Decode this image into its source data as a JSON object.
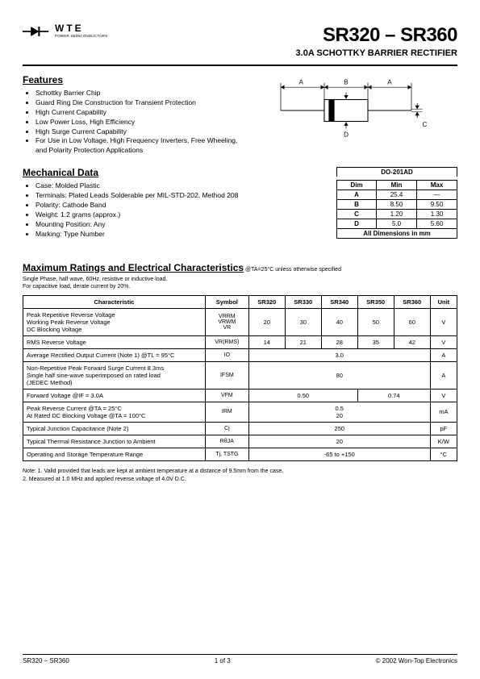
{
  "logo": {
    "brand": "WTE",
    "sub": "POWER SEMICONDUCTORS"
  },
  "title": {
    "main": "SR320 – SR360",
    "sub": "3.0A SCHOTTKY BARRIER RECTIFIER"
  },
  "features": {
    "heading": "Features",
    "items": [
      "Schottky Barrier Chip",
      "Guard Ring Die Construction for Transient Protection",
      "High Current Capability",
      "Low Power Loss, High Efficiency",
      "High Surge Current Capability",
      "For Use in Low Voltage, High Frequency Inverters, Free Wheeling, and Polarity Protection Applications"
    ]
  },
  "mech": {
    "heading": "Mechanical Data",
    "items": [
      "Case: Molded Plastic",
      "Terminals: Plated Leads Solderable per MIL-STD-202, Method 208",
      "Polarity: Cathode Band",
      "Weight: 1.2 grams (approx.)",
      "Mounting Position: Any",
      "Marking: Type Number"
    ]
  },
  "package_labels": {
    "A": "A",
    "B": "B",
    "C": "C",
    "D": "D"
  },
  "dim_table": {
    "title": "DO-201AD",
    "headers": [
      "Dim",
      "Min",
      "Max"
    ],
    "rows": [
      [
        "A",
        "25.4",
        "—"
      ],
      [
        "B",
        "8.50",
        "9.50"
      ],
      [
        "C",
        "1.20",
        "1.30"
      ],
      [
        "D",
        "5.0",
        "5.60"
      ]
    ],
    "footer": "All Dimensions in mm"
  },
  "ratings": {
    "heading": "Maximum Ratings and Electrical Characteristics",
    "cond": " @TA=25°C unless otherwise specified",
    "note": "Single Phase, half wave, 60Hz, resistive or inductive load.\nFor capacitive load, derate current by 20%."
  },
  "char_headers": [
    "Characteristic",
    "Symbol",
    "SR320",
    "SR330",
    "SR340",
    "SR350",
    "SR360",
    "Unit"
  ],
  "char_rows": [
    {
      "c": "Peak Repetitive Reverse Voltage\nWorking Peak Reverse Voltage\nDC Blocking Voltage",
      "sym": "VRRM\nVRWM\nVR",
      "v": [
        "20",
        "30",
        "40",
        "50",
        "60"
      ],
      "unit": "V"
    },
    {
      "c": "RMS Reverse Voltage",
      "sym": "VR(RMS)",
      "v": [
        "14",
        "21",
        "28",
        "35",
        "42"
      ],
      "unit": "V"
    },
    {
      "c": "Average Rectified Output Current    (Note 1)        @TL = 95°C",
      "sym": "IO",
      "span": "3.0",
      "unit": "A"
    },
    {
      "c": "Non-Repetitive Peak Forward Surge Current 8.3ms\nSingle half sine-wave superimposed on rated load\n(JEDEC Method)",
      "sym": "IFSM",
      "span": "80",
      "unit": "A"
    },
    {
      "c": "Forward Voltage                                              @IF = 3.0A",
      "sym": "VFM",
      "half": [
        "0.50",
        "0.74"
      ],
      "unit": "V"
    },
    {
      "c": "Peak Reverse Current                            @TA = 25°C\nAt Rated DC Blocking Voltage              @TA = 100°C",
      "sym": "IRM",
      "span": "0.5\n20",
      "unit": "mA"
    },
    {
      "c": "Typical Junction Capacitance (Note 2)",
      "sym": "Cj",
      "span": "250",
      "unit": "pF"
    },
    {
      "c": "Typical Thermal Resistance Junction to Ambient",
      "sym": "RθJA",
      "span": "20",
      "unit": "K/W"
    },
    {
      "c": "Operating and Storage Temperature Range",
      "sym": "Tj, TSTG",
      "span": "-65 to +150",
      "unit": "°C"
    }
  ],
  "notes": "Note:   1. Valid provided that leads are kept at ambient temperature at a distance of 9.5mm from the case.\n            2. Measured at 1.0 MHz and applied reverse voltage of 4.0V D.C.",
  "footer": {
    "left": "SR320 – SR360",
    "center": "1  of  3",
    "right": "© 2002 Won-Top Electronics"
  }
}
